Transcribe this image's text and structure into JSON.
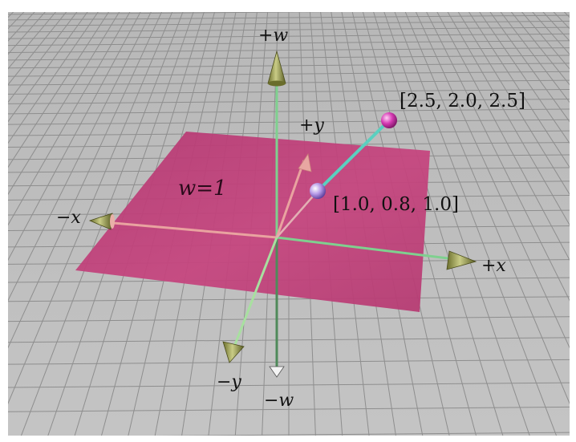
{
  "axes": {
    "plus_w": "+w",
    "minus_w": "−w",
    "plus_x": "+x",
    "minus_x": "−x",
    "plus_y": "+y",
    "minus_y": "−y"
  },
  "plane_label": "w=1",
  "points": [
    {
      "label": "[2.5, 2.0, 2.5]",
      "color": "#cc33aa"
    },
    {
      "label": "[1.0, 0.8, 1.0]",
      "color": "#9a7fd8"
    }
  ],
  "colors": {
    "grid_background": "#bdbdbd",
    "grid_lines": "#8c8c8c",
    "plane": "#c2407a",
    "axis_arrow": "#8a8e4a",
    "axis_line": "#66c27a",
    "projection_line": "#5ad0c0"
  }
}
